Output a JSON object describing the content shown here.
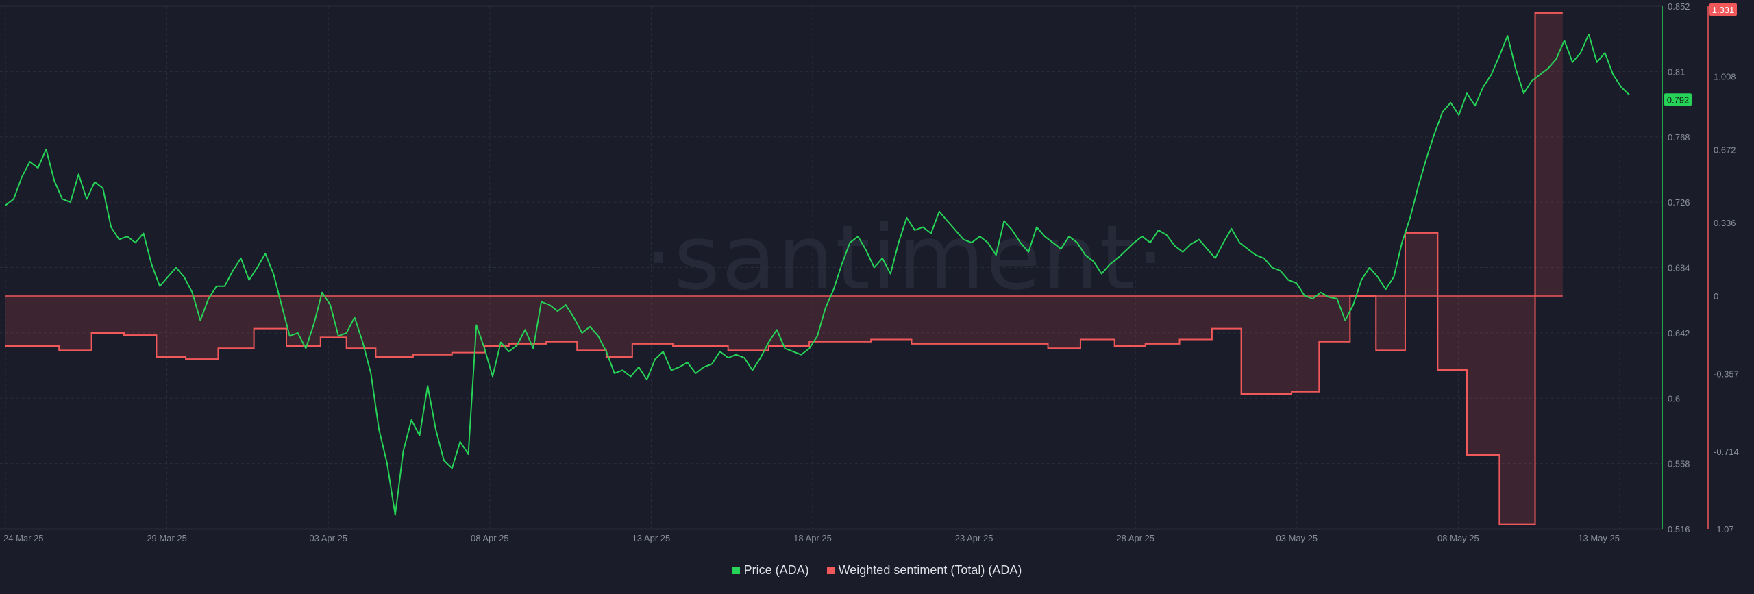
{
  "watermark": "·santiment·",
  "colors": {
    "background": "#1a1c29",
    "price": "#26d257",
    "sentiment": "#f0585a",
    "sentiment_fill": "rgba(240,88,90,0.16)",
    "grid": "#2a2d3c",
    "tick_text": "#8a8e9c"
  },
  "chart_data": {
    "type": "line",
    "legend": [
      "Price (ADA)",
      "Weighted sentiment (Total) (ADA)"
    ],
    "legend_position": "bottom-center",
    "x_ticks": [
      "24 Mar 25",
      "29 Mar 25",
      "03 Apr 25",
      "08 Apr 25",
      "13 Apr 25",
      "18 Apr 25",
      "23 Apr 25",
      "28 Apr 25",
      "03 May 25",
      "08 May 25",
      "13 May 25"
    ],
    "x_range": [
      "2025-03-24",
      "2025-05-13"
    ],
    "grid": true,
    "price_axis": {
      "ticks": [
        "0.852",
        "0.81",
        "0.768",
        "0.726",
        "0.684",
        "0.642",
        "0.6",
        "0.558",
        "0.516"
      ],
      "range": [
        0.516,
        0.852
      ],
      "current_label": "0.792"
    },
    "sentiment_axis": {
      "ticks": [
        "1.008",
        "0.672",
        "0.336",
        "0",
        "-0.357",
        "-0.714",
        "-1.07"
      ],
      "range": [
        -1.07,
        1.331
      ],
      "current_label": "1.331"
    },
    "series": [
      {
        "name": "Price (ADA)",
        "axis": "price",
        "style": "line",
        "points": [
          [
            0.0,
            0.724
          ],
          [
            0.5,
            0.728
          ],
          [
            1.0,
            0.742
          ],
          [
            1.5,
            0.752
          ],
          [
            2.0,
            0.748
          ],
          [
            2.5,
            0.76
          ],
          [
            3.0,
            0.74
          ],
          [
            3.5,
            0.728
          ],
          [
            4.0,
            0.726
          ],
          [
            4.5,
            0.744
          ],
          [
            5.0,
            0.728
          ],
          [
            5.5,
            0.739
          ],
          [
            6.0,
            0.735
          ],
          [
            6.5,
            0.71
          ],
          [
            7.0,
            0.702
          ],
          [
            7.5,
            0.704
          ],
          [
            8.0,
            0.7
          ],
          [
            8.5,
            0.706
          ],
          [
            9.0,
            0.686
          ],
          [
            9.5,
            0.672
          ],
          [
            10.0,
            0.678
          ],
          [
            10.5,
            0.684
          ],
          [
            11.0,
            0.678
          ],
          [
            11.5,
            0.668
          ],
          [
            12.0,
            0.65
          ],
          [
            12.5,
            0.664
          ],
          [
            13.0,
            0.672
          ],
          [
            13.5,
            0.672
          ],
          [
            14.0,
            0.682
          ],
          [
            14.5,
            0.69
          ],
          [
            15.0,
            0.676
          ],
          [
            15.5,
            0.684
          ],
          [
            16.0,
            0.693
          ],
          [
            16.5,
            0.68
          ],
          [
            17.0,
            0.66
          ],
          [
            17.5,
            0.64
          ],
          [
            18.0,
            0.642
          ],
          [
            18.5,
            0.632
          ],
          [
            19.0,
            0.648
          ],
          [
            19.5,
            0.668
          ],
          [
            20.0,
            0.66
          ],
          [
            20.5,
            0.64
          ],
          [
            21.0,
            0.642
          ],
          [
            21.5,
            0.652
          ],
          [
            22.0,
            0.636
          ],
          [
            22.5,
            0.616
          ],
          [
            23.0,
            0.58
          ],
          [
            23.5,
            0.558
          ],
          [
            24.0,
            0.525
          ],
          [
            24.5,
            0.566
          ],
          [
            25.0,
            0.586
          ],
          [
            25.5,
            0.576
          ],
          [
            26.0,
            0.608
          ],
          [
            26.5,
            0.58
          ],
          [
            27.0,
            0.56
          ],
          [
            27.5,
            0.555
          ],
          [
            28.0,
            0.572
          ],
          [
            28.5,
            0.564
          ],
          [
            29.0,
            0.647
          ],
          [
            29.5,
            0.632
          ],
          [
            30.0,
            0.614
          ],
          [
            30.5,
            0.636
          ],
          [
            31.0,
            0.63
          ],
          [
            31.5,
            0.634
          ],
          [
            32.0,
            0.644
          ],
          [
            32.5,
            0.632
          ],
          [
            33.0,
            0.662
          ],
          [
            33.5,
            0.66
          ],
          [
            34.0,
            0.656
          ],
          [
            34.5,
            0.66
          ],
          [
            35.0,
            0.652
          ],
          [
            35.5,
            0.642
          ],
          [
            36.0,
            0.646
          ],
          [
            36.5,
            0.64
          ],
          [
            37.0,
            0.63
          ],
          [
            37.5,
            0.616
          ],
          [
            38.0,
            0.618
          ],
          [
            38.5,
            0.614
          ],
          [
            39.0,
            0.62
          ],
          [
            39.5,
            0.612
          ],
          [
            40.0,
            0.625
          ],
          [
            40.5,
            0.63
          ],
          [
            41.0,
            0.618
          ],
          [
            41.5,
            0.62
          ],
          [
            42.0,
            0.623
          ],
          [
            42.5,
            0.616
          ],
          [
            43.0,
            0.62
          ],
          [
            43.5,
            0.622
          ],
          [
            44.0,
            0.63
          ],
          [
            44.5,
            0.626
          ],
          [
            45.0,
            0.628
          ],
          [
            45.5,
            0.626
          ],
          [
            46.0,
            0.618
          ],
          [
            46.5,
            0.626
          ],
          [
            47.0,
            0.636
          ],
          [
            47.5,
            0.644
          ],
          [
            48.0,
            0.632
          ],
          [
            48.5,
            0.63
          ],
          [
            49.0,
            0.628
          ],
          [
            49.5,
            0.632
          ],
          [
            50.0,
            0.64
          ],
          [
            50.5,
            0.658
          ],
          [
            51.0,
            0.67
          ],
          [
            51.5,
            0.686
          ],
          [
            52.0,
            0.7
          ],
          [
            52.5,
            0.704
          ],
          [
            53.0,
            0.695
          ],
          [
            53.5,
            0.684
          ],
          [
            54.0,
            0.69
          ],
          [
            54.5,
            0.68
          ],
          [
            55.0,
            0.7
          ],
          [
            55.5,
            0.716
          ],
          [
            56.0,
            0.708
          ],
          [
            56.5,
            0.71
          ],
          [
            57.0,
            0.706
          ],
          [
            57.5,
            0.72
          ],
          [
            58.0,
            0.714
          ],
          [
            58.5,
            0.708
          ],
          [
            59.0,
            0.702
          ],
          [
            59.5,
            0.7
          ],
          [
            60.0,
            0.704
          ],
          [
            60.5,
            0.7
          ],
          [
            61.0,
            0.692
          ],
          [
            61.5,
            0.714
          ],
          [
            62.0,
            0.708
          ],
          [
            62.5,
            0.7
          ],
          [
            63.0,
            0.694
          ],
          [
            63.5,
            0.71
          ],
          [
            64.0,
            0.704
          ],
          [
            64.5,
            0.7
          ],
          [
            65.0,
            0.696
          ],
          [
            65.5,
            0.704
          ],
          [
            66.0,
            0.7
          ],
          [
            66.5,
            0.692
          ],
          [
            67.0,
            0.688
          ],
          [
            67.5,
            0.68
          ],
          [
            68.0,
            0.686
          ],
          [
            68.5,
            0.69
          ],
          [
            69.0,
            0.695
          ],
          [
            69.5,
            0.7
          ],
          [
            70.0,
            0.704
          ],
          [
            70.5,
            0.7
          ],
          [
            71.0,
            0.708
          ],
          [
            71.5,
            0.705
          ],
          [
            72.0,
            0.698
          ],
          [
            72.5,
            0.694
          ],
          [
            73.0,
            0.699
          ],
          [
            73.5,
            0.702
          ],
          [
            74.0,
            0.696
          ],
          [
            74.5,
            0.69
          ],
          [
            75.0,
            0.7
          ],
          [
            75.5,
            0.709
          ],
          [
            76.0,
            0.7
          ],
          [
            76.5,
            0.696
          ],
          [
            77.0,
            0.692
          ],
          [
            77.5,
            0.69
          ],
          [
            78.0,
            0.684
          ],
          [
            78.5,
            0.682
          ],
          [
            79.0,
            0.676
          ],
          [
            79.5,
            0.674
          ],
          [
            80.0,
            0.666
          ],
          [
            80.5,
            0.664
          ],
          [
            81.0,
            0.668
          ],
          [
            81.5,
            0.665
          ],
          [
            82.0,
            0.664
          ],
          [
            82.5,
            0.65
          ],
          [
            83.0,
            0.66
          ],
          [
            83.5,
            0.676
          ],
          [
            84.0,
            0.684
          ],
          [
            84.5,
            0.678
          ],
          [
            85.0,
            0.67
          ],
          [
            85.5,
            0.678
          ],
          [
            86.0,
            0.7
          ],
          [
            86.5,
            0.716
          ],
          [
            87.0,
            0.736
          ],
          [
            87.5,
            0.754
          ],
          [
            88.0,
            0.77
          ],
          [
            88.5,
            0.784
          ],
          [
            89.0,
            0.79
          ],
          [
            89.5,
            0.782
          ],
          [
            90.0,
            0.796
          ],
          [
            90.5,
            0.788
          ],
          [
            91.0,
            0.8
          ],
          [
            91.5,
            0.808
          ],
          [
            92.0,
            0.82
          ],
          [
            92.5,
            0.833
          ],
          [
            93.0,
            0.812
          ],
          [
            93.5,
            0.796
          ],
          [
            94.0,
            0.804
          ],
          [
            94.5,
            0.808
          ],
          [
            95.0,
            0.812
          ],
          [
            95.5,
            0.818
          ],
          [
            96.0,
            0.83
          ],
          [
            96.5,
            0.816
          ],
          [
            97.0,
            0.822
          ],
          [
            97.5,
            0.834
          ],
          [
            98.0,
            0.816
          ],
          [
            98.5,
            0.822
          ],
          [
            99.0,
            0.808
          ],
          [
            99.5,
            0.8
          ],
          [
            100.0,
            0.795
          ]
        ]
      },
      {
        "name": "Weighted sentiment (Total) (ADA)",
        "axis": "sentiment",
        "style": "step-area",
        "points": [
          [
            0.0,
            -0.23
          ],
          [
            3.3,
            -0.25
          ],
          [
            5.3,
            -0.17
          ],
          [
            7.3,
            -0.18
          ],
          [
            9.3,
            -0.28
          ],
          [
            11.1,
            -0.29
          ],
          [
            13.1,
            -0.24
          ],
          [
            15.3,
            -0.15
          ],
          [
            17.3,
            -0.23
          ],
          [
            19.4,
            -0.19
          ],
          [
            21.0,
            -0.24
          ],
          [
            22.8,
            -0.28
          ],
          [
            25.1,
            -0.27
          ],
          [
            27.5,
            -0.26
          ],
          [
            29.5,
            -0.23
          ],
          [
            31.0,
            -0.22
          ],
          [
            33.3,
            -0.21
          ],
          [
            35.2,
            -0.25
          ],
          [
            37.0,
            -0.28
          ],
          [
            38.6,
            -0.22
          ],
          [
            41.1,
            -0.23
          ],
          [
            44.5,
            -0.25
          ],
          [
            47.0,
            -0.23
          ],
          [
            49.5,
            -0.21
          ],
          [
            53.3,
            -0.2
          ],
          [
            55.8,
            -0.22
          ],
          [
            59.0,
            -0.22
          ],
          [
            64.2,
            -0.24
          ],
          [
            66.2,
            -0.2
          ],
          [
            68.3,
            -0.23
          ],
          [
            70.2,
            -0.22
          ],
          [
            72.3,
            -0.2
          ],
          [
            74.3,
            -0.15
          ],
          [
            76.1,
            -0.45
          ],
          [
            79.2,
            -0.44
          ],
          [
            80.9,
            -0.21
          ],
          [
            82.8,
            0.0
          ],
          [
            84.4,
            -0.25
          ],
          [
            86.2,
            0.29
          ],
          [
            88.2,
            -0.34
          ],
          [
            90.0,
            -0.73
          ],
          [
            92.0,
            -1.05
          ],
          [
            94.2,
            1.3
          ],
          [
            95.9,
            1.3
          ]
        ]
      }
    ]
  }
}
